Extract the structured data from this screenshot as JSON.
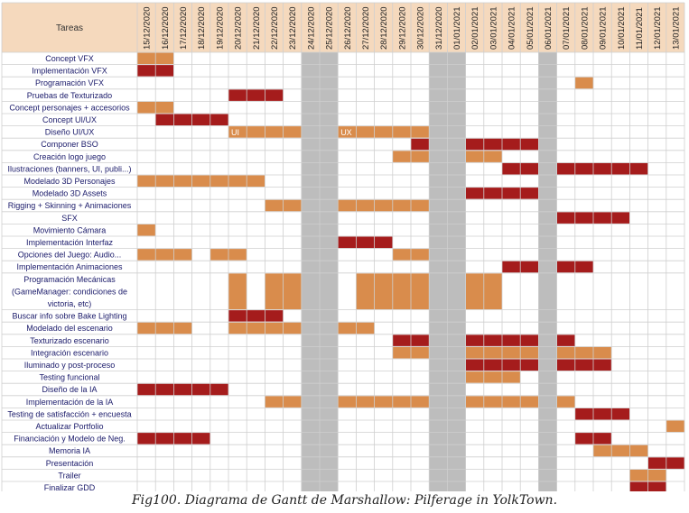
{
  "chart_data": {
    "type": "gantt",
    "header_label": "Tareas",
    "dates": [
      "15/12/2020",
      "16/12/2020",
      "17/12/2020",
      "18/12/2020",
      "19/12/2020",
      "20/12/2020",
      "21/12/2020",
      "22/12/2020",
      "23/12/2020",
      "24/12/2020",
      "25/12/2020",
      "26/12/2020",
      "27/12/2020",
      "28/12/2020",
      "29/12/2020",
      "30/12/2020",
      "31/12/2020",
      "01/01/2021",
      "02/01/2021",
      "03/01/2021",
      "04/01/2021",
      "05/01/2021",
      "06/01/2021",
      "07/01/2021",
      "08/01/2021",
      "09/01/2021",
      "10/01/2021",
      "11/01/2021",
      "12/01/2021",
      "13/01/2021"
    ],
    "holiday_dates": [
      "24/12/2020",
      "25/12/2020",
      "31/12/2020",
      "01/01/2021",
      "06/01/2021"
    ],
    "colors": {
      "orange": "#d98c4c",
      "red": "#a51c1c",
      "holiday": "#bdbdbd",
      "header": "#f5d9bd",
      "grid": "#cfcfcf"
    },
    "tasks": [
      {
        "name": "Concept VFX",
        "bars": [
          [
            "15/12/2020",
            "16/12/2020",
            "orange"
          ]
        ]
      },
      {
        "name": "Implementación VFX",
        "bars": [
          [
            "15/12/2020",
            "16/12/2020",
            "red"
          ]
        ]
      },
      {
        "name": "Programación VFX",
        "bars": [
          [
            "08/01/2021",
            "08/01/2021",
            "orange"
          ]
        ]
      },
      {
        "name": "Pruebas de Texturizado",
        "bars": [
          [
            "20/12/2020",
            "22/12/2020",
            "red"
          ]
        ]
      },
      {
        "name": "Concept personajes + accesorios",
        "bars": [
          [
            "15/12/2020",
            "16/12/2020",
            "orange"
          ]
        ]
      },
      {
        "name": "Concept UI/UX",
        "bars": [
          [
            "16/12/2020",
            "19/12/2020",
            "red"
          ]
        ]
      },
      {
        "name": "Diseño UI/UX",
        "bars": [
          [
            "20/12/2020",
            "23/12/2020",
            "orange",
            "UI"
          ],
          [
            "26/12/2020",
            "30/12/2020",
            "orange",
            "UX"
          ]
        ]
      },
      {
        "name": "Componer BSO",
        "bars": [
          [
            "30/12/2020",
            "30/12/2020",
            "red"
          ],
          [
            "02/01/2021",
            "05/01/2021",
            "red"
          ]
        ]
      },
      {
        "name": "Creación logo juego",
        "bars": [
          [
            "29/12/2020",
            "30/12/2020",
            "orange"
          ],
          [
            "02/01/2021",
            "03/01/2021",
            "orange"
          ]
        ]
      },
      {
        "name": "Ilustraciones (banners, UI, publi...)",
        "bars": [
          [
            "04/01/2021",
            "05/01/2021",
            "red"
          ],
          [
            "07/01/2021",
            "11/01/2021",
            "red"
          ]
        ]
      },
      {
        "name": "Modelado 3D Personajes",
        "bars": [
          [
            "15/12/2020",
            "21/12/2020",
            "orange"
          ]
        ]
      },
      {
        "name": "Modelado 3D Assets",
        "bars": [
          [
            "02/01/2021",
            "05/01/2021",
            "red"
          ]
        ]
      },
      {
        "name": "Rigging + Skinning + Animaciones",
        "bars": [
          [
            "22/12/2020",
            "23/12/2020",
            "orange"
          ],
          [
            "26/12/2020",
            "30/12/2020",
            "orange"
          ]
        ]
      },
      {
        "name": "SFX",
        "bars": [
          [
            "07/01/2021",
            "10/01/2021",
            "red"
          ]
        ]
      },
      {
        "name": "Movimiento Cámara",
        "bars": [
          [
            "15/12/2020",
            "15/12/2020",
            "orange"
          ]
        ]
      },
      {
        "name": "Implementación Interfaz",
        "bars": [
          [
            "26/12/2020",
            "28/12/2020",
            "red"
          ]
        ]
      },
      {
        "name": "Opciones del Juego: Audio...",
        "bars": [
          [
            "15/12/2020",
            "17/12/2020",
            "orange"
          ],
          [
            "19/12/2020",
            "20/12/2020",
            "orange"
          ],
          [
            "29/12/2020",
            "30/12/2020",
            "orange"
          ]
        ]
      },
      {
        "name": "Implementación Animaciones",
        "bars": [
          [
            "04/01/2021",
            "05/01/2021",
            "red"
          ],
          [
            "07/01/2021",
            "08/01/2021",
            "red"
          ]
        ]
      },
      {
        "name": "Programación Mecánicas (GameManager: condiciones de victoria, etc)",
        "lines": [
          "Programación Mecánicas",
          "(GameManager: condiciones de",
          "victoria, etc)"
        ],
        "rows": 3,
        "bars": [
          [
            "20/12/2020",
            "20/12/2020",
            "orange"
          ],
          [
            "22/12/2020",
            "23/12/2020",
            "orange"
          ],
          [
            "27/12/2020",
            "30/12/2020",
            "orange"
          ],
          [
            "02/01/2021",
            "03/01/2021",
            "orange"
          ]
        ]
      },
      {
        "name": "Buscar info sobre Bake Lighting",
        "bars": [
          [
            "20/12/2020",
            "22/12/2020",
            "red"
          ]
        ]
      },
      {
        "name": "Modelado del escenario",
        "bars": [
          [
            "15/12/2020",
            "17/12/2020",
            "orange"
          ],
          [
            "20/12/2020",
            "23/12/2020",
            "orange"
          ],
          [
            "26/12/2020",
            "27/12/2020",
            "orange"
          ]
        ]
      },
      {
        "name": "Texturizado escenario",
        "bars": [
          [
            "29/12/2020",
            "30/12/2020",
            "red"
          ],
          [
            "02/01/2021",
            "05/01/2021",
            "red"
          ],
          [
            "07/01/2021",
            "07/01/2021",
            "red"
          ]
        ]
      },
      {
        "name": "Integración escenario",
        "bars": [
          [
            "29/12/2020",
            "30/12/2020",
            "orange"
          ],
          [
            "02/01/2021",
            "05/01/2021",
            "orange"
          ],
          [
            "07/01/2021",
            "09/01/2021",
            "orange"
          ]
        ]
      },
      {
        "name": "Iluminado y post-proceso",
        "bars": [
          [
            "02/01/2021",
            "05/01/2021",
            "red"
          ],
          [
            "07/01/2021",
            "09/01/2021",
            "red"
          ]
        ]
      },
      {
        "name": "Testing funcional",
        "bars": [
          [
            "02/01/2021",
            "04/01/2021",
            "orange"
          ]
        ]
      },
      {
        "name": "Diseño de la IA",
        "bars": [
          [
            "15/12/2020",
            "19/12/2020",
            "red"
          ]
        ]
      },
      {
        "name": "Implementación de la IA",
        "bars": [
          [
            "22/12/2020",
            "23/12/2020",
            "orange"
          ],
          [
            "26/12/2020",
            "30/12/2020",
            "orange"
          ],
          [
            "02/01/2021",
            "05/01/2021",
            "orange"
          ],
          [
            "07/01/2021",
            "07/01/2021",
            "orange"
          ]
        ]
      },
      {
        "name": "Testing de satisfacción + encuesta",
        "bars": [
          [
            "08/01/2021",
            "10/01/2021",
            "red"
          ]
        ]
      },
      {
        "name": "Actualizar Portfolio",
        "bars": [
          [
            "13/01/2021",
            "13/01/2021",
            "orange"
          ]
        ]
      },
      {
        "name": "Financiación y Modelo de Neg.",
        "bars": [
          [
            "15/12/2020",
            "18/12/2020",
            "red"
          ],
          [
            "08/01/2021",
            "09/01/2021",
            "red"
          ]
        ]
      },
      {
        "name": "Memoria IA",
        "bars": [
          [
            "09/01/2021",
            "11/01/2021",
            "orange"
          ]
        ]
      },
      {
        "name": "Presentación",
        "bars": [
          [
            "12/01/2021",
            "13/01/2021",
            "red"
          ]
        ]
      },
      {
        "name": "Trailer",
        "bars": [
          [
            "11/01/2021",
            "12/01/2021",
            "orange"
          ]
        ]
      },
      {
        "name": "Finalizar GDD",
        "bars": [
          [
            "11/01/2021",
            "12/01/2021",
            "red"
          ]
        ]
      }
    ]
  },
  "caption": "Fig100. Diagrama de Gantt de Marshallow: Pilferage in YolkTown."
}
